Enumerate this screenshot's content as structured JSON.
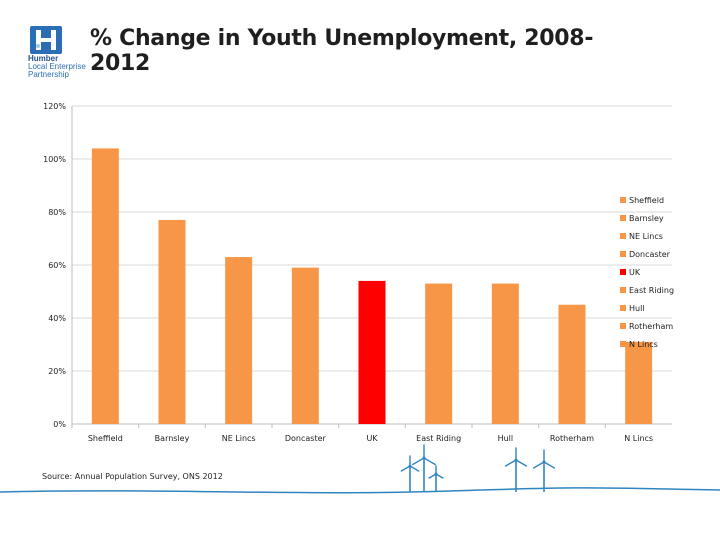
{
  "logo": {
    "line1": "Humber",
    "line2": "Local Enterprise",
    "line3": "Partnership"
  },
  "source_text": "Source: Annual Population Survey, ONS 2012",
  "colors": {
    "bar": "#f79646",
    "highlight": "#ff0000",
    "gridline": "#d9d9d9",
    "logo_blue": "#2a6fb5",
    "turbine": "#2e86c1"
  },
  "chart_data": {
    "type": "bar",
    "title": "% Change in Youth Unemployment, 2008-2012",
    "xlabel": "",
    "ylabel": "",
    "categories": [
      "Sheffield",
      "Barnsley",
      "NE Lincs",
      "Doncaster",
      "UK",
      "East Riding",
      "Hull",
      "Rotherham",
      "N Lincs"
    ],
    "values": [
      104,
      77,
      63,
      59,
      54,
      53,
      53,
      45,
      31
    ],
    "highlight_category": "UK",
    "ylim": [
      0,
      120
    ],
    "yticks": [
      "0%",
      "20%",
      "40%",
      "60%",
      "80%",
      "100%",
      "120%"
    ],
    "ytick_values": [
      0,
      20,
      40,
      60,
      80,
      100,
      120
    ],
    "grid": true,
    "legend_position": "right"
  }
}
